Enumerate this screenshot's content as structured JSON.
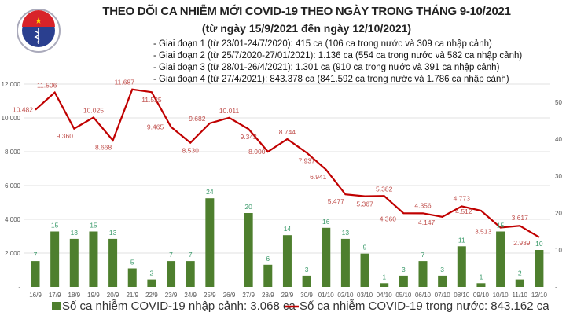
{
  "header": {
    "title": "THEO DÕI CA NHIỄM MỚI COVID-19 THEO NGÀY TRONG THÁNG 9-10/2021",
    "subtitle": "(từ ngày 15/9/2021 đến ngày 12/10/2021)",
    "phases": [
      "- Giai đoạn 1 (từ 23/01-24/7/2020): 415 ca (106 ca trong nước và 309 ca nhập cảnh)",
      "- Giai đoạn 2 (từ 25/7/2020-27/01/2021): 1.136 ca (554 ca trong nước và 582 ca nhập cảnh)",
      "- Giai đoạn 3 (từ 28/01-26/4/2021): 1.301 ca (910 ca trong nước và 391 ca nhập cảnh)",
      "- Giai đoạn 4 (từ 27/4/2021): 843.378 ca (841.592 ca trong nước và 1.786 ca nhập cảnh)"
    ],
    "logo_text": "BỘ Y TẾ - MINISTRY OF HEALTH"
  },
  "chart_data": {
    "type": "bar+line",
    "categories": [
      "16/9",
      "17/9",
      "18/9",
      "19/9",
      "20/9",
      "21/9",
      "22/9",
      "23/9",
      "24/9",
      "25/9",
      "26/9",
      "27/9",
      "28/9",
      "29/9",
      "30/9",
      "01/10",
      "02/10",
      "03/10",
      "04/10",
      "05/10",
      "06/10",
      "07/10",
      "08/10",
      "09/10",
      "10/10",
      "11/10",
      "12/10"
    ],
    "series": [
      {
        "name": "Số ca nhiễm COVID-19 nhập cảnh: 3.068 ca",
        "type": "bar",
        "axis": "right",
        "color": "#4e7f2e",
        "values": [
          7,
          15,
          13,
          15,
          13,
          5,
          2,
          7,
          7,
          24,
          null,
          20,
          6,
          14,
          3,
          16,
          13,
          9,
          1,
          3,
          7,
          3,
          11,
          1,
          15,
          2,
          10
        ]
      },
      {
        "name": "Số ca nhiễm COVID-19 trong nước: 843.162 ca",
        "type": "line",
        "axis": "left",
        "color": "#c00000",
        "values": [
          10482,
          11506,
          9360,
          10025,
          8668,
          11687,
          11525,
          9465,
          8530,
          9682,
          10011,
          9342,
          8000,
          8744,
          7937,
          6941,
          5477,
          5367,
          5382,
          4360,
          4356,
          4147,
          4773,
          4512,
          3513,
          3617,
          2939
        ],
        "labels": [
          "10.482",
          "11.506",
          "9.360",
          "10.025",
          "8.668",
          "11.687",
          "11.525",
          "9.465",
          "8.530",
          "9.682",
          "10.011",
          "9.342",
          "8.000",
          "8.744",
          "7.937",
          "6.941",
          "5.477",
          "5.367",
          "5.382",
          "4.360",
          "4.356",
          "4.147",
          "4.773",
          "4.512",
          "3.513",
          "3.617",
          "2.939"
        ]
      }
    ],
    "left_axis": {
      "ylim": [
        0,
        12000
      ],
      "ticks": [
        "-",
        "2.000",
        "4.000",
        "6.000",
        "8.000",
        "10.000",
        "12.000"
      ]
    },
    "right_axis": {
      "ylim": [
        0,
        55
      ],
      "ticks": [
        "-",
        "10",
        "20",
        "30",
        "40",
        "50"
      ]
    },
    "grid": true,
    "legend": "bottom"
  }
}
